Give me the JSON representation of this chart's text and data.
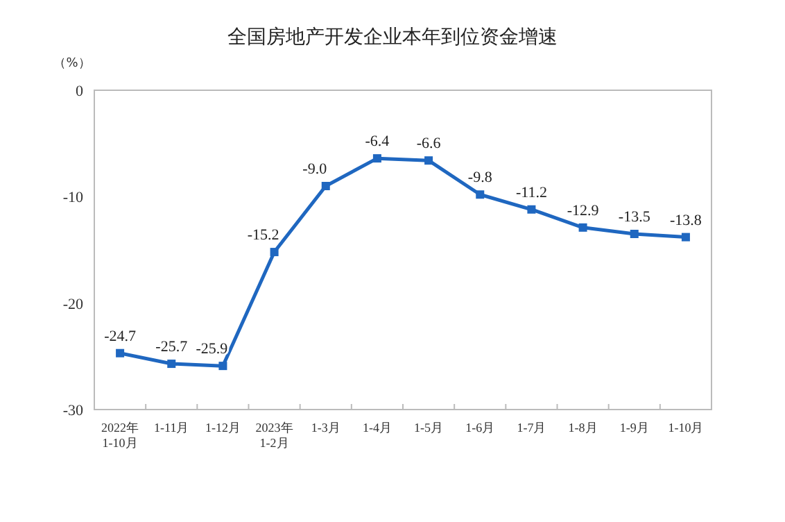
{
  "chart_data": {
    "type": "line",
    "title": "全国房地产开发企业本年到位资金增速",
    "ylabel": "（%）",
    "categories": [
      "2022年\n1-10月",
      "1-11月",
      "1-12月",
      "2023年\n1-2月",
      "1-3月",
      "1-4月",
      "1-5月",
      "1-6月",
      "1-7月",
      "1-8月",
      "1-9月",
      "1-10月"
    ],
    "series": [
      {
        "color": "#1f67c0",
        "values": [
          -24.7,
          -25.7,
          -25.9,
          -15.2,
          -9.0,
          -6.4,
          -6.6,
          -9.8,
          -11.2,
          -12.9,
          -13.5,
          -13.8
        ]
      }
    ],
    "ylim": [
      -30,
      0
    ],
    "yticks": [
      {
        "value": 0,
        "label": "0"
      },
      {
        "value": -10,
        "label": "-10"
      },
      {
        "value": -20,
        "label": "-20"
      },
      {
        "value": -30,
        "label": "-30"
      }
    ],
    "value_labels": [
      "-24.7",
      "-25.7",
      "-25.9",
      "-15.2",
      "-9.0",
      "-6.4",
      "-6.6",
      "-9.8",
      "-11.2",
      "-12.9",
      "-13.5",
      "-13.8"
    ],
    "marker": "square",
    "grid": false
  }
}
